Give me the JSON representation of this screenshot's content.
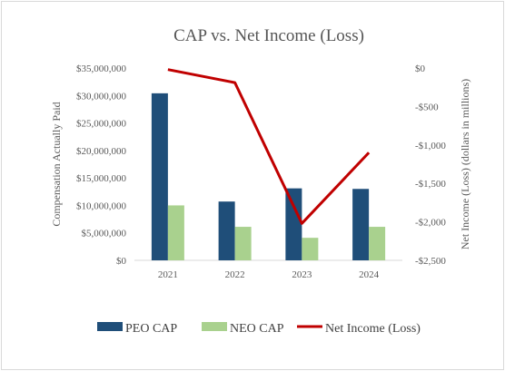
{
  "chart_data": {
    "type": "bar",
    "title": "CAP vs. Net Income (Loss)",
    "categories": [
      "2021",
      "2022",
      "2023",
      "2024"
    ],
    "ylabel": "Compensation Actually Paid",
    "y2label": "Net Income (Loss) (dollars in millions)",
    "ylim": [
      0,
      35000000
    ],
    "y2lim": [
      -2500,
      0
    ],
    "yticks": [
      "$35,000,000",
      "$30,000,000",
      "$25,000,000",
      "$20,000,000",
      "$15,000,000",
      "$10,000,000",
      "$5,000,000",
      "$0"
    ],
    "y2ticks": [
      "$0",
      "-$500",
      "-$1,000",
      "-$1,500",
      "-$2,000",
      "-$2,500"
    ],
    "grid": false,
    "legend_position": "bottom",
    "series": [
      {
        "name": "PEO CAP",
        "type": "bar",
        "axis": "left",
        "color": "#1f4e79",
        "values": [
          30400000,
          10700000,
          13100000,
          13000000
        ]
      },
      {
        "name": "NEO CAP",
        "type": "bar",
        "axis": "left",
        "color": "#a9d18e",
        "values": [
          10000000,
          6100000,
          4100000,
          6100000
        ]
      },
      {
        "name": "Net Income (Loss)",
        "type": "line",
        "axis": "right",
        "color": "#c00000",
        "values": [
          -20,
          -190,
          -2020,
          -1100
        ]
      }
    ]
  }
}
